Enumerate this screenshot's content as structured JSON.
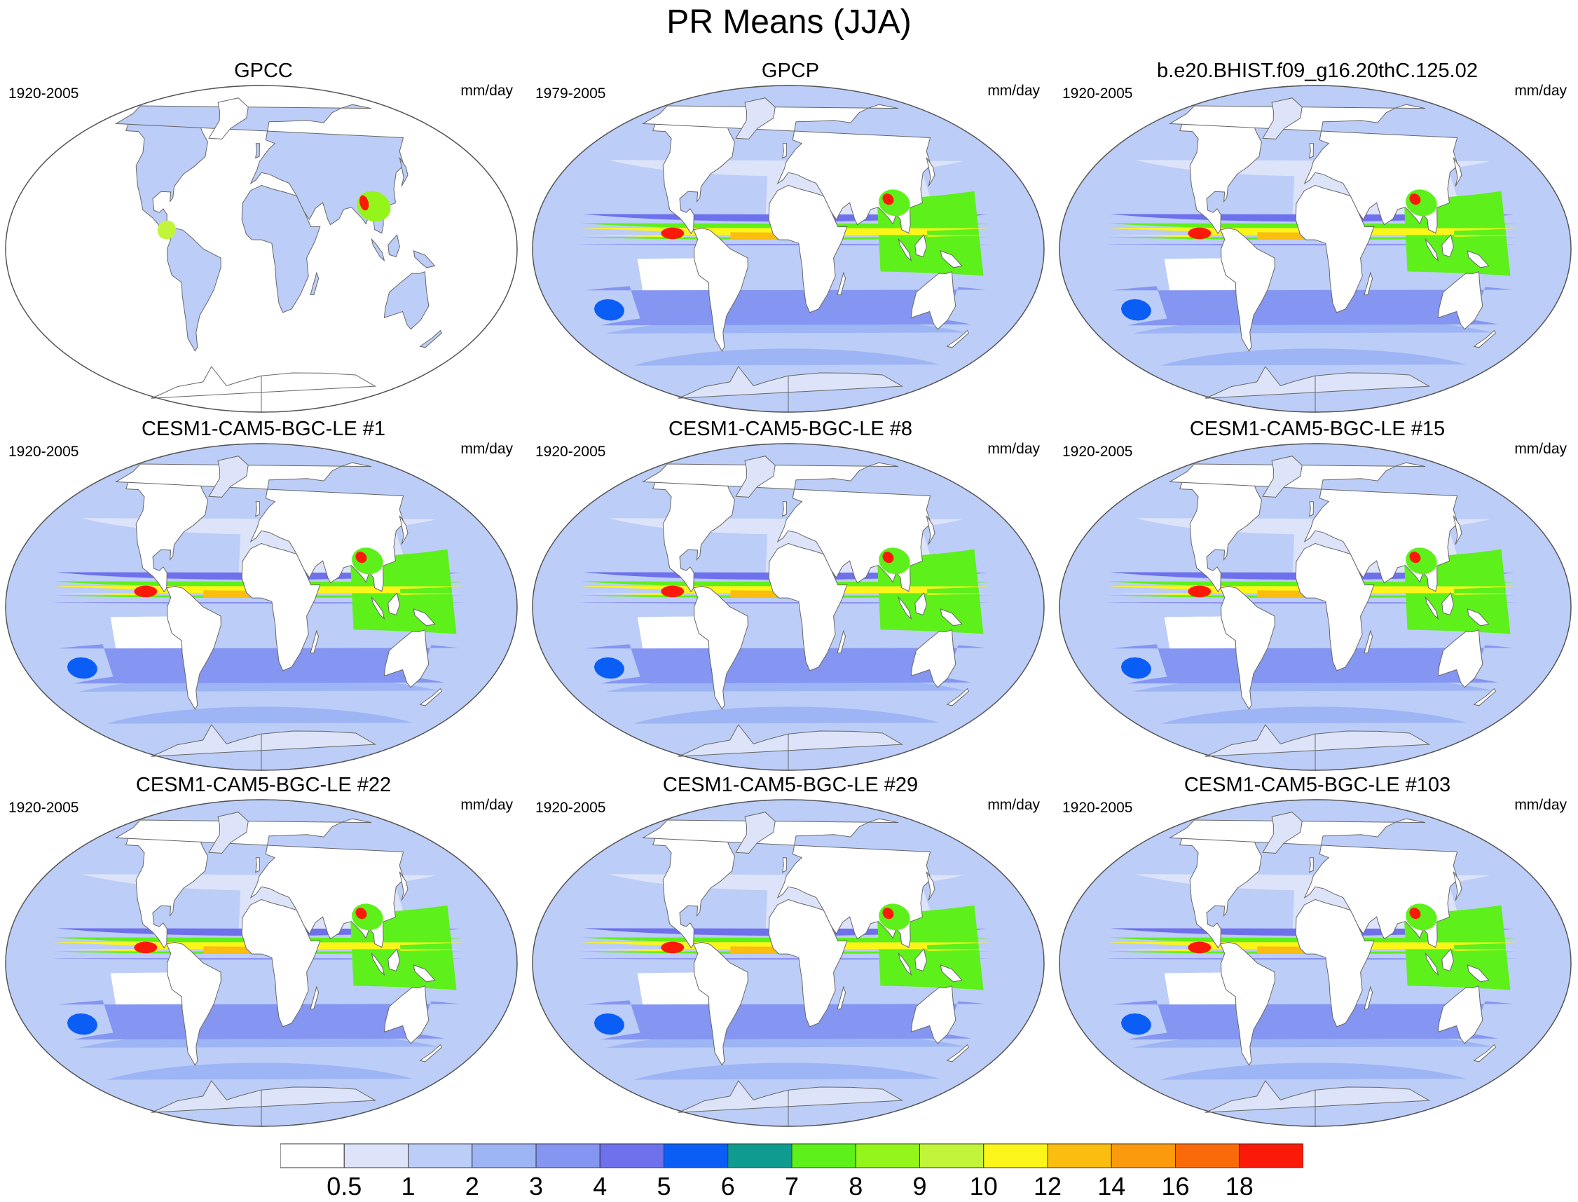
{
  "title": "PR Means (JJA)",
  "panels": [
    {
      "title": "GPCC",
      "period": "1920-2005",
      "units": "mm/day",
      "style": "obs_land"
    },
    {
      "title": "GPCP",
      "period": "1979-2005",
      "units": "mm/day",
      "style": "obs_sat"
    },
    {
      "title": "b.e20.BHIST.f09_g16.20thC.125.02",
      "period": "1920-2005",
      "units": "mm/day",
      "style": "model_a"
    },
    {
      "title": "CESM1-CAM5-BGC-LE #1",
      "period": "1920-2005",
      "units": "mm/day",
      "style": "model_b"
    },
    {
      "title": "CESM1-CAM5-BGC-LE #8",
      "period": "1920-2005",
      "units": "mm/day",
      "style": "model_b"
    },
    {
      "title": "CESM1-CAM5-BGC-LE #15",
      "period": "1920-2005",
      "units": "mm/day",
      "style": "model_b"
    },
    {
      "title": "CESM1-CAM5-BGC-LE #22",
      "period": "1920-2005",
      "units": "mm/day",
      "style": "model_b"
    },
    {
      "title": "CESM1-CAM5-BGC-LE #29",
      "period": "1920-2005",
      "units": "mm/day",
      "style": "model_b"
    },
    {
      "title": "CESM1-CAM5-BGC-LE #103",
      "period": "1920-2005",
      "units": "mm/day",
      "style": "model_b"
    }
  ],
  "colorbar": {
    "labels": [
      "0.5",
      "1",
      "2",
      "3",
      "4",
      "5",
      "6",
      "7",
      "8",
      "9",
      "10",
      "12",
      "14",
      "16",
      "18"
    ],
    "colors": [
      "#ffffff",
      "#dde4fa",
      "#bccdf7",
      "#9db5f5",
      "#8595f2",
      "#6e70ec",
      "#0a5df5",
      "#0f9b8f",
      "#5ef01a",
      "#94f51a",
      "#c2f53a",
      "#fbf51a",
      "#fbbd0f",
      "#fb9a0d",
      "#fb6a0a",
      "#fb1a0a"
    ]
  }
}
